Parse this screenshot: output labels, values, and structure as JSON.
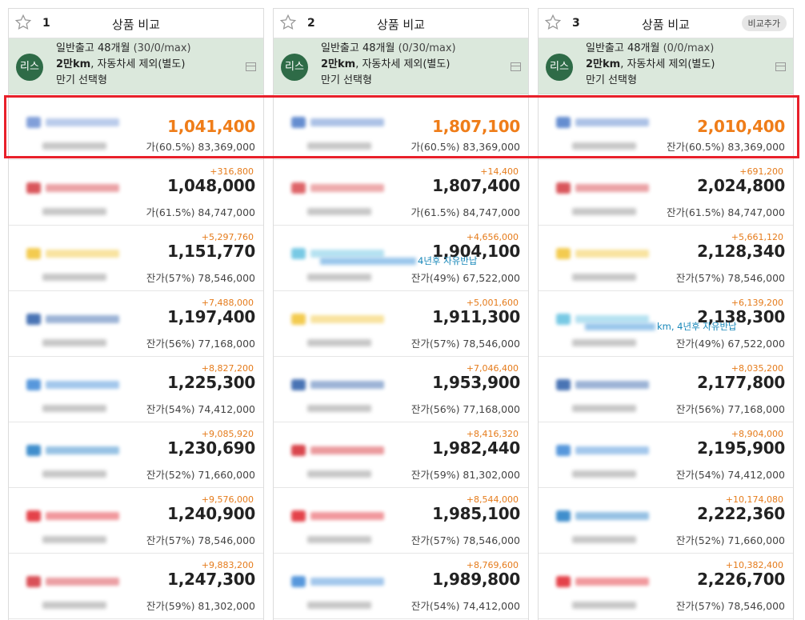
{
  "header": {
    "title": "상품 비교",
    "add_label": "비교추가"
  },
  "info": {
    "badge": "리스",
    "term": "일반출고 48개월",
    "mileage_bold": "2만km",
    "mileage_rest": ", 자동차세 제외(별도)",
    "contract_end": "만기 선택형"
  },
  "columns": [
    {
      "num": "1",
      "options": "(30/0/max)",
      "rows": [
        {
          "delta": "",
          "price": "1,041,400",
          "resid": "가(60.5%) 83,369,000",
          "logo": "#6c8fd3"
        },
        {
          "delta": "+316,800",
          "price": "1,048,000",
          "resid": "가(61.5%) 84,747,000",
          "logo": "#d3393f"
        },
        {
          "delta": "+5,297,760",
          "price": "1,151,770",
          "resid": "잔가(57%) 78,546,000",
          "logo": "#f1c232"
        },
        {
          "delta": "+7,488,000",
          "price": "1,197,400",
          "resid": "잔가(56%) 77,168,000",
          "logo": "#2a5ca8"
        },
        {
          "delta": "+8,827,200",
          "price": "1,225,300",
          "resid": "잔가(54%) 74,412,000",
          "logo": "#3a86d6"
        },
        {
          "delta": "+9,085,920",
          "price": "1,230,690",
          "resid": "잔가(52%) 71,660,000",
          "logo": "#1f7bc4"
        },
        {
          "delta": "+9,576,000",
          "price": "1,240,900",
          "resid": "잔가(57%) 78,546,000",
          "logo": "#e0222b"
        },
        {
          "delta": "+9,883,200",
          "price": "1,247,300",
          "resid": "잔가(59%) 81,302,000",
          "logo": "#d3323a"
        }
      ]
    },
    {
      "num": "2",
      "options": "(0/30/max)",
      "rows": [
        {
          "delta": "",
          "price": "1,807,100",
          "resid": "가(60.5%) 83,369,000",
          "logo": "#4b7ac8"
        },
        {
          "delta": "+14,400",
          "price": "1,807,400",
          "resid": "가(61.5%) 84,747,000",
          "logo": "#d94a4f"
        },
        {
          "delta": "+4,656,000",
          "price": "1,904,100",
          "resid": "잔가(49%) 67,522,000",
          "logo": "#61c0e0"
        },
        {
          "delta": "+5,001,600",
          "price": "1,911,300",
          "resid": "잔가(57%) 78,546,000",
          "logo": "#f1c232"
        },
        {
          "delta": "+7,046,400",
          "price": "1,953,900",
          "resid": "잔가(56%) 77,168,000",
          "logo": "#2a5ca8"
        },
        {
          "delta": "+8,416,320",
          "price": "1,982,440",
          "resid": "잔가(59%) 81,302,000",
          "logo": "#d3262e"
        },
        {
          "delta": "+8,544,000",
          "price": "1,985,100",
          "resid": "잔가(57%) 78,546,000",
          "logo": "#e0222b"
        },
        {
          "delta": "+8,769,600",
          "price": "1,989,800",
          "resid": "잔가(54%) 74,412,000",
          "logo": "#3a86d6"
        }
      ]
    },
    {
      "num": "3",
      "options": "(0/0/max)",
      "rows": [
        {
          "delta": "",
          "price": "2,010,400",
          "resid": "잔가(60.5%) 83,369,000",
          "logo": "#4b7ac8"
        },
        {
          "delta": "+691,200",
          "price": "2,024,800",
          "resid": "잔가(61.5%) 84,747,000",
          "logo": "#d3393f"
        },
        {
          "delta": "+5,661,120",
          "price": "2,128,340",
          "resid": "잔가(57%) 78,546,000",
          "logo": "#f1c232"
        },
        {
          "delta": "+6,139,200",
          "price": "2,138,300",
          "resid": "잔가(49%) 67,522,000",
          "logo": "#61c0e0"
        },
        {
          "delta": "+8,035,200",
          "price": "2,177,800",
          "resid": "잔가(56%) 77,168,000",
          "logo": "#2a5ca8"
        },
        {
          "delta": "+8,904,000",
          "price": "2,195,900",
          "resid": "잔가(54%) 74,412,000",
          "logo": "#3a86d6"
        },
        {
          "delta": "+10,174,080",
          "price": "2,222,360",
          "resid": "잔가(52%) 71,660,000",
          "logo": "#1f7bc4"
        },
        {
          "delta": "+10,382,400",
          "price": "2,226,700",
          "resid": "잔가(57%) 78,546,000",
          "logo": "#e0222b"
        }
      ]
    }
  ],
  "notes": {
    "col2_row3": "4년후 자유반납",
    "col3_row4": "km, 4년후 자유반납"
  }
}
